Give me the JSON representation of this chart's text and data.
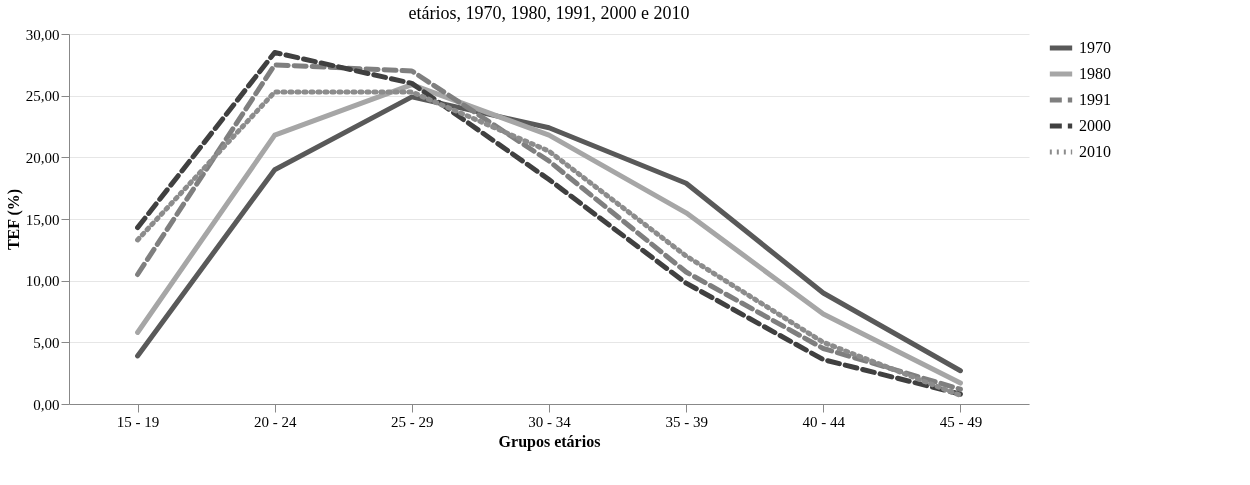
{
  "chart_data": {
    "type": "line",
    "title": "etários, 1970, 1980, 1991, 2000 e 2010",
    "xlabel": "Grupos etários",
    "ylabel": "TEF (%)",
    "categories": [
      "15 - 19",
      "20 - 24",
      "25 - 29",
      "30 - 34",
      "35 - 39",
      "40 - 44",
      "45 - 49"
    ],
    "series": [
      {
        "name": "1970",
        "color": "#595959",
        "line_style": "solid",
        "values": [
          3.9,
          19.0,
          24.9,
          22.4,
          17.9,
          9.0,
          2.7
        ]
      },
      {
        "name": "1980",
        "color": "#a6a6a6",
        "line_style": "solid",
        "values": [
          5.8,
          21.8,
          25.9,
          21.8,
          15.5,
          7.3,
          1.7
        ]
      },
      {
        "name": "1991",
        "color": "#7f7f7f",
        "line_style": "dashed",
        "values": [
          10.5,
          27.5,
          27.0,
          19.7,
          10.7,
          4.5,
          1.2
        ]
      },
      {
        "name": "2000",
        "color": "#404040",
        "line_style": "dashed",
        "values": [
          14.3,
          28.5,
          26.0,
          18.2,
          9.8,
          3.6,
          0.8
        ]
      },
      {
        "name": "2010",
        "color": "#8c8c8c",
        "line_style": "dotted",
        "values": [
          13.3,
          25.3,
          25.3,
          20.5,
          12.0,
          5.0,
          0.7
        ]
      }
    ],
    "ylim": [
      0,
      30
    ],
    "yticks": [
      {
        "value": 0,
        "label": "0,00"
      },
      {
        "value": 5,
        "label": "5,00"
      },
      {
        "value": 10,
        "label": "10,00"
      },
      {
        "value": 15,
        "label": "15,00"
      },
      {
        "value": 20,
        "label": "20,00"
      },
      {
        "value": 25,
        "label": "25,00"
      },
      {
        "value": 30,
        "label": "30,00"
      }
    ],
    "grid": "y",
    "legend": "right",
    "marker": "none"
  }
}
